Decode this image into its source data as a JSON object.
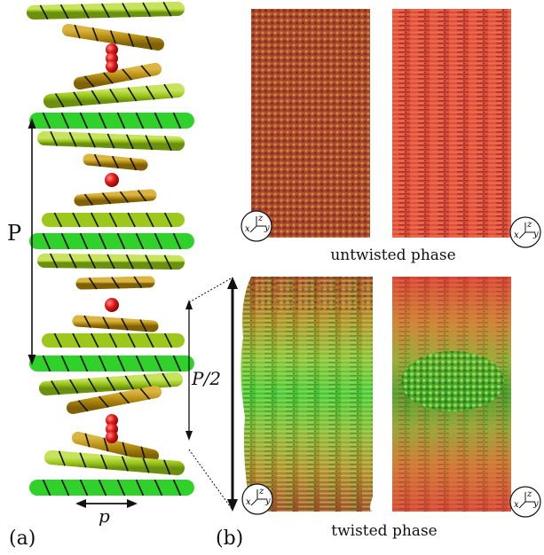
{
  "panel_a": {
    "label": "(a)",
    "pitch_label": "P",
    "helix_label": "p",
    "rod_colors": {
      "green": "#2fd12a",
      "yellow_green": "#9cc81c",
      "olive": "#b48c10",
      "red": "#d01010",
      "stripe": "#111111"
    }
  },
  "panel_b": {
    "label": "(b)",
    "half_pitch_label": "P/2",
    "untwisted": {
      "caption": "untwisted phase",
      "axes": [
        "x",
        "y",
        "z"
      ]
    },
    "twisted": {
      "caption": "twisted phase",
      "axes": [
        "x",
        "y",
        "z"
      ]
    },
    "colors": {
      "untwisted_left": "#a8462e",
      "untwisted_right": "#e0503a",
      "twisted_top": "#b87a2a",
      "twisted_mid": "#5ec43a",
      "twisted_bottom": "#c45a34"
    }
  }
}
